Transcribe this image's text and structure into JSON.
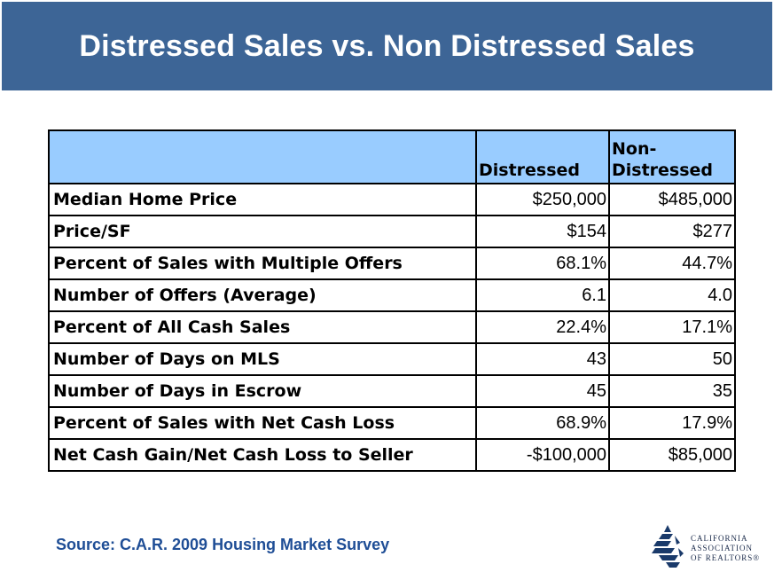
{
  "title": "Distressed Sales vs. Non Distressed Sales",
  "table": {
    "headers": [
      "",
      "Distressed",
      "Non-\nDistressed"
    ],
    "rows": [
      {
        "label": "Median Home Price",
        "distressed": "$250,000",
        "non_distressed": "$485,000"
      },
      {
        "label": "Price/SF",
        "distressed": "$154",
        "non_distressed": "$277"
      },
      {
        "label": "Percent of Sales with Multiple Offers",
        "distressed": "68.1%",
        "non_distressed": "44.7%"
      },
      {
        "label": "Number of Offers (Average)",
        "distressed": "6.1",
        "non_distressed": "4.0"
      },
      {
        "label": "Percent of All Cash Sales",
        "distressed": "22.4%",
        "non_distressed": "17.1%"
      },
      {
        "label": "Number of Days on MLS",
        "distressed": "43",
        "non_distressed": "50"
      },
      {
        "label": "Number of Days in Escrow",
        "distressed": "45",
        "non_distressed": "35"
      },
      {
        "label": "Percent of Sales with Net Cash Loss",
        "distressed": "68.9%",
        "non_distressed": "17.9%"
      },
      {
        "label": "Net Cash Gain/Net Cash Loss to Seller",
        "distressed": "-$100,000",
        "non_distressed": "$85,000"
      }
    ]
  },
  "source": "Source: C.A.R. 2009 Housing Market Survey",
  "logo": {
    "icon": "car-logo-icon",
    "line1": "CALIFORNIA",
    "line2": "ASSOCIATION",
    "line3": "OF REALTORS®"
  },
  "colors": {
    "title_bar": "#3d6596",
    "header_fill": "#99ccff",
    "source_text": "#1f4e96"
  }
}
